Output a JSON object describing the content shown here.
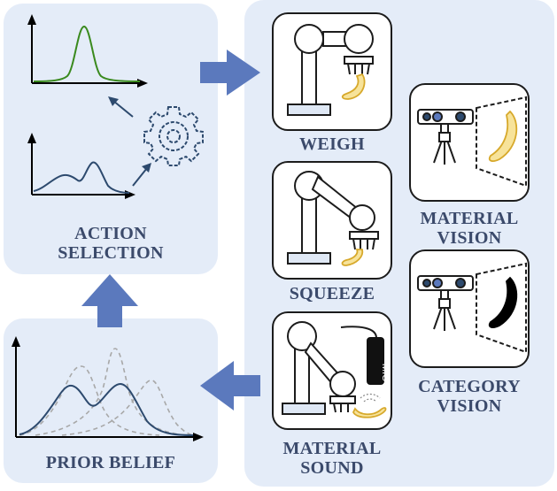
{
  "labels": {
    "action_selection": [
      "ACTION",
      "SELECTION"
    ],
    "prior_belief": "PRIOR BELIEF",
    "weigh": "WEIGH",
    "squeeze": "SQUEEZE",
    "material_sound": [
      "MATERIAL",
      "SOUND"
    ],
    "material_vision": [
      "MATERIAL",
      "VISION"
    ],
    "category_vision": [
      "CATEGORY",
      "VISION"
    ],
    "mic": "MIC"
  },
  "colors": {
    "panel_bg": "#e4ecf8",
    "arrow": "#5b79bd",
    "label_text": "#3b4a6b",
    "curve_green": "#3a8a1e",
    "curve_navy": "#2d4a6e",
    "banana": "#f7e39a",
    "banana_outline": "#d7a92b"
  },
  "icons": [
    "gear-icon",
    "robot-arm-icon",
    "camera-icon",
    "banana-icon",
    "microphone-icon",
    "sound-wave-icon"
  ]
}
